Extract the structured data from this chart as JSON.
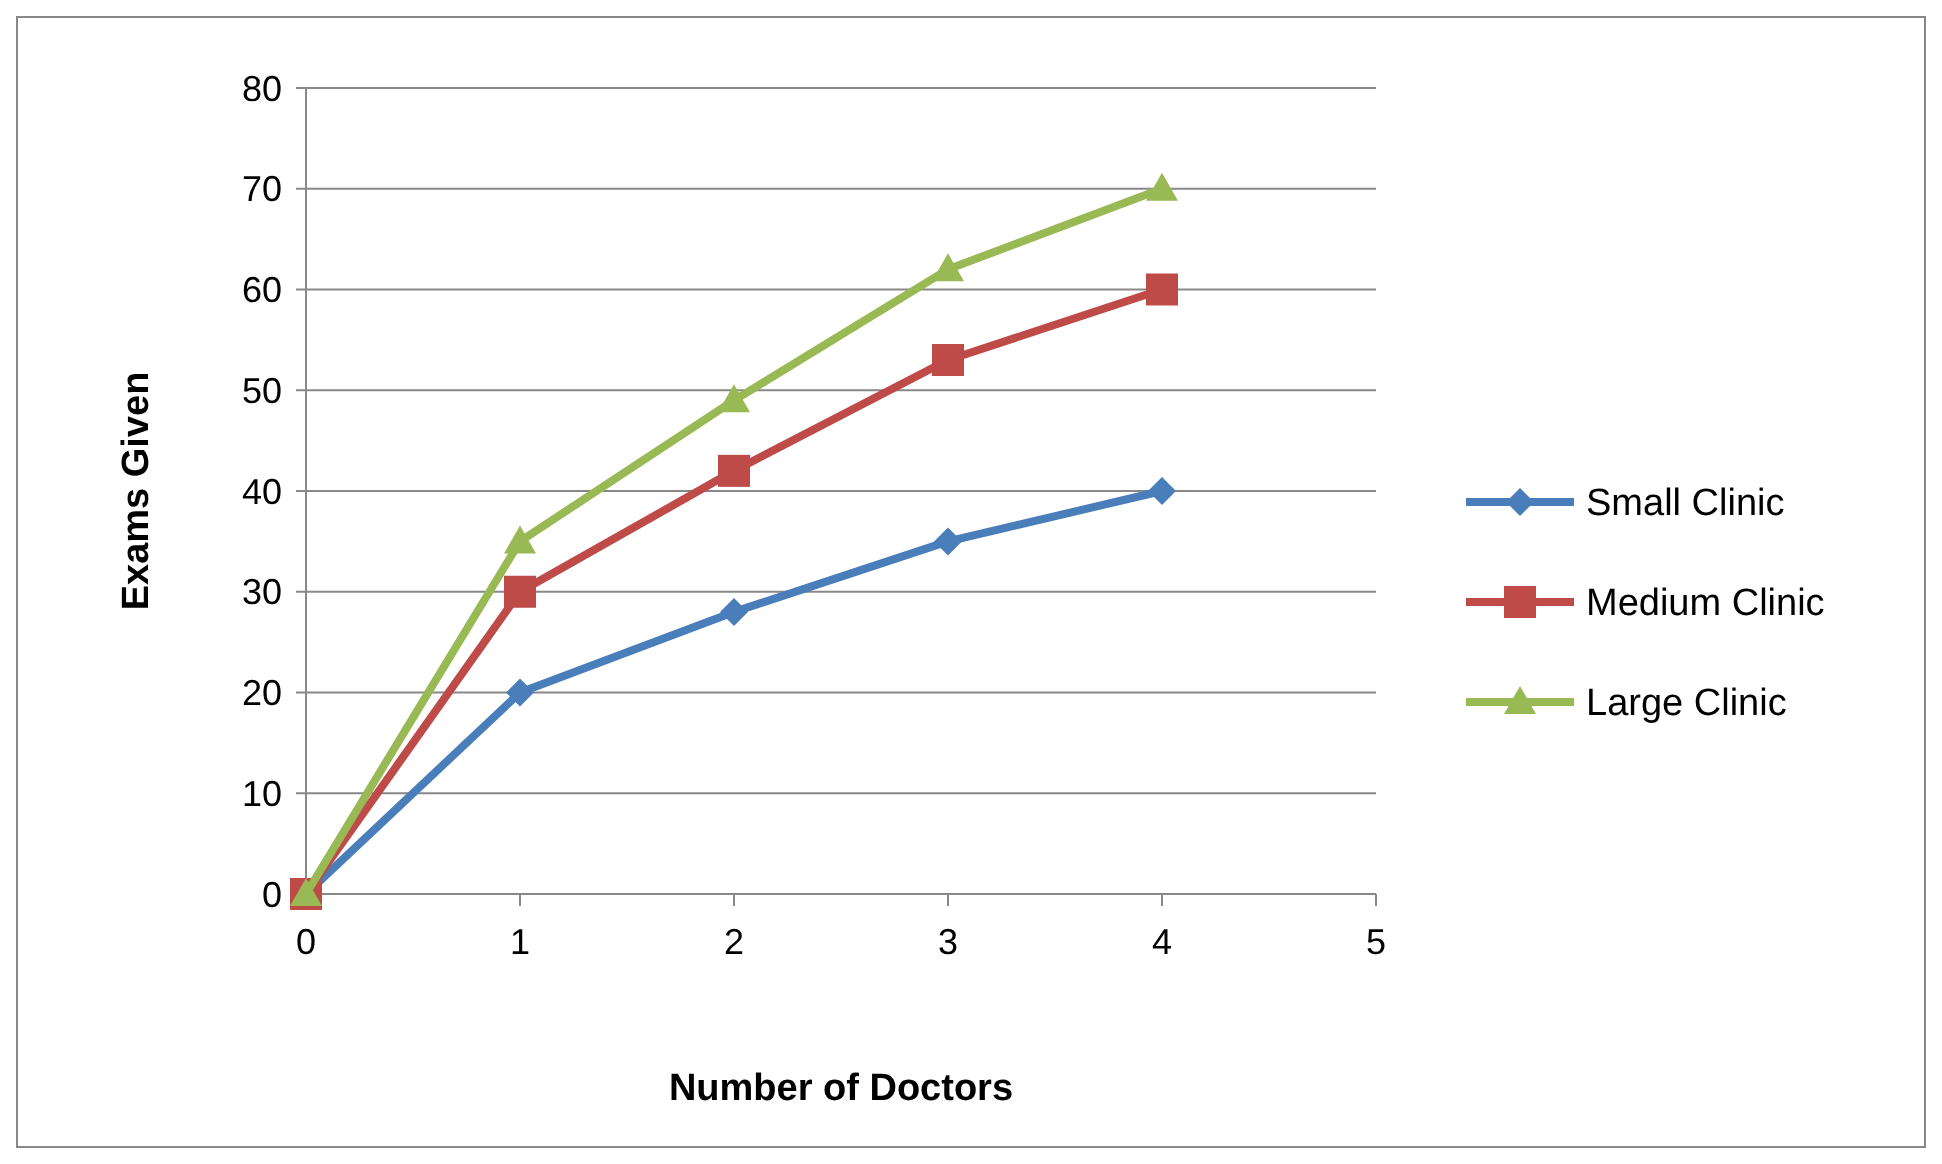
{
  "chart_data": {
    "type": "line",
    "xlabel": "Number of Doctors",
    "ylabel": "Exams Given",
    "x": [
      0,
      1,
      2,
      3,
      4
    ],
    "xlim": [
      0,
      5
    ],
    "xticks": [
      0,
      1,
      2,
      3,
      4,
      5
    ],
    "ylim": [
      0,
      80
    ],
    "yticks": [
      0,
      10,
      20,
      30,
      40,
      50,
      60,
      70,
      80
    ],
    "grid": "y",
    "legend": "right",
    "line_style": "solid",
    "series": [
      {
        "name": "Small Clinic",
        "color": "#4a7ebb",
        "marker": "diamond",
        "values": [
          0,
          20,
          28,
          35,
          40
        ]
      },
      {
        "name": "Medium Clinic",
        "color": "#be4b48",
        "marker": "square",
        "values": [
          0,
          30,
          42,
          53,
          60
        ]
      },
      {
        "name": "Large Clinic",
        "color": "#98b954",
        "marker": "triangle",
        "values": [
          0,
          35,
          49,
          62,
          70
        ]
      }
    ]
  }
}
